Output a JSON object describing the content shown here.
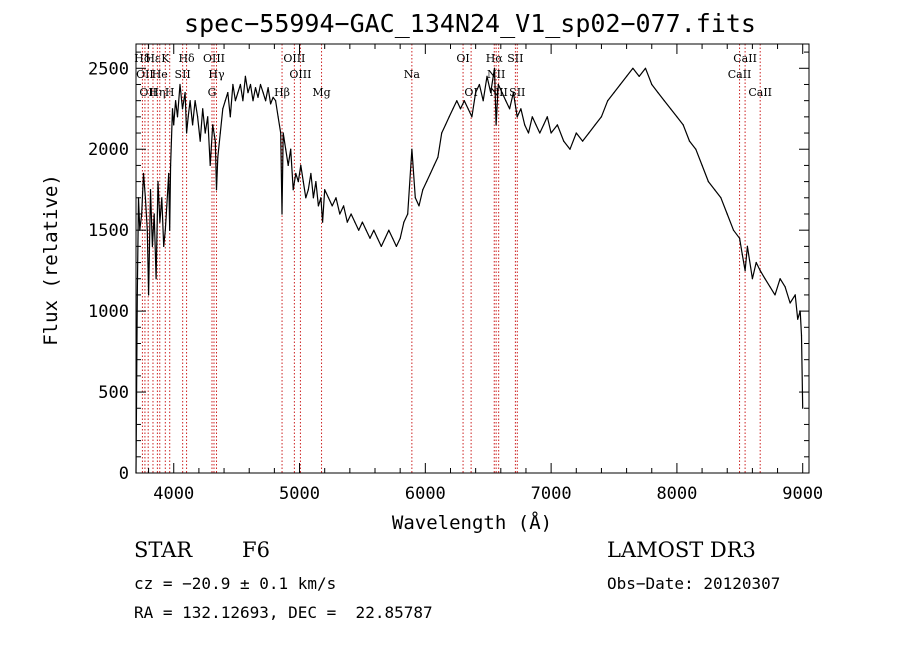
{
  "chart_data": {
    "type": "line",
    "title": "spec−55994−GAC_134N24_V1_sp02−077.fits",
    "xlabel": "Wavelength (Å)",
    "ylabel": "Flux (relative)",
    "xlim": [
      3700,
      9050
    ],
    "ylim": [
      0,
      2650
    ],
    "x_ticks": [
      4000,
      5000,
      6000,
      7000,
      8000,
      9000
    ],
    "y_ticks": [
      0,
      500,
      1000,
      1500,
      2000,
      2500
    ],
    "grid": false,
    "series": [
      {
        "x": [
          3700,
          3710,
          3720,
          3730,
          3745,
          3760,
          3775,
          3790,
          3800,
          3815,
          3830,
          3845,
          3860,
          3875,
          3890,
          3905,
          3920,
          3933,
          3945,
          3960,
          3968,
          3975,
          3990,
          4000,
          4015,
          4030,
          4050,
          4070,
          4090,
          4102,
          4115,
          4130,
          4150,
          4170,
          4190,
          4210,
          4230,
          4250,
          4270,
          4290,
          4310,
          4330,
          4340,
          4350,
          4370,
          4390,
          4410,
          4430,
          4450,
          4470,
          4490,
          4510,
          4530,
          4550,
          4570,
          4590,
          4610,
          4630,
          4650,
          4670,
          4690,
          4710,
          4730,
          4750,
          4770,
          4790,
          4810,
          4830,
          4850,
          4861,
          4870,
          4890,
          4910,
          4930,
          4950,
          4970,
          4990,
          5010,
          5030,
          5050,
          5070,
          5090,
          5110,
          5130,
          5150,
          5170,
          5183,
          5200,
          5230,
          5260,
          5290,
          5320,
          5350,
          5380,
          5410,
          5440,
          5470,
          5500,
          5530,
          5560,
          5590,
          5620,
          5650,
          5680,
          5710,
          5740,
          5770,
          5800,
          5830,
          5860,
          5893,
          5920,
          5950,
          5980,
          6010,
          6040,
          6070,
          6100,
          6130,
          6160,
          6190,
          6220,
          6250,
          6280,
          6310,
          6340,
          6370,
          6400,
          6430,
          6460,
          6490,
          6520,
          6550,
          6563,
          6580,
          6610,
          6640,
          6670,
          6700,
          6730,
          6760,
          6790,
          6820,
          6850,
          6880,
          6910,
          6940,
          6970,
          7000,
          7050,
          7100,
          7150,
          7200,
          7250,
          7300,
          7350,
          7400,
          7450,
          7500,
          7550,
          7600,
          7650,
          7700,
          7750,
          7800,
          7850,
          7900,
          7950,
          8000,
          8050,
          8100,
          8150,
          8200,
          8250,
          8300,
          8350,
          8400,
          8450,
          8498,
          8520,
          8542,
          8560,
          8600,
          8630,
          8662,
          8700,
          8740,
          8780,
          8820,
          8860,
          8900,
          8940,
          8960,
          8980,
          8990,
          9000
        ],
        "y": [
          0,
          1100,
          1700,
          1500,
          1600,
          1850,
          1700,
          1500,
          1100,
          1750,
          1400,
          1600,
          1200,
          1800,
          1550,
          1700,
          1400,
          1500,
          1650,
          1850,
          1500,
          1900,
          2250,
          2150,
          2300,
          2200,
          2400,
          2250,
          2350,
          2100,
          2200,
          2300,
          2150,
          2300,
          2200,
          2050,
          2250,
          2100,
          2200,
          1900,
          2150,
          2050,
          1750,
          1950,
          2100,
          2250,
          2300,
          2350,
          2200,
          2400,
          2300,
          2350,
          2400,
          2300,
          2450,
          2350,
          2400,
          2300,
          2380,
          2320,
          2400,
          2350,
          2300,
          2380,
          2280,
          2320,
          2300,
          2200,
          2100,
          1600,
          2100,
          2000,
          1900,
          2000,
          1750,
          1850,
          1800,
          1900,
          1800,
          1700,
          1750,
          1850,
          1700,
          1800,
          1650,
          1700,
          1550,
          1750,
          1700,
          1650,
          1700,
          1600,
          1650,
          1550,
          1600,
          1550,
          1500,
          1550,
          1500,
          1450,
          1500,
          1450,
          1400,
          1450,
          1500,
          1450,
          1400,
          1450,
          1550,
          1600,
          2000,
          1700,
          1650,
          1750,
          1800,
          1850,
          1900,
          1950,
          2100,
          2150,
          2200,
          2250,
          2300,
          2250,
          2300,
          2250,
          2200,
          2350,
          2400,
          2300,
          2450,
          2350,
          2500,
          2150,
          2400,
          2350,
          2300,
          2250,
          2350,
          2200,
          2250,
          2150,
          2100,
          2200,
          2150,
          2100,
          2150,
          2200,
          2100,
          2150,
          2050,
          2000,
          2100,
          2050,
          2100,
          2150,
          2200,
          2300,
          2350,
          2400,
          2450,
          2500,
          2450,
          2500,
          2400,
          2350,
          2300,
          2250,
          2200,
          2150,
          2050,
          2000,
          1900,
          1800,
          1750,
          1700,
          1600,
          1500,
          1450,
          1350,
          1250,
          1400,
          1200,
          1300,
          1250,
          1200,
          1150,
          1100,
          1200,
          1150,
          1050,
          1100,
          950,
          1000,
          850,
          400
        ]
      }
    ],
    "lines": [
      {
        "x": 3751,
        "label": "Hδ",
        "row": 1
      },
      {
        "x": 3771,
        "label": "OII",
        "row": 2
      },
      {
        "x": 3797,
        "label": "OII",
        "row": 3
      },
      {
        "x": 3835,
        "label": "Hε",
        "row": 1
      },
      {
        "x": 3889,
        "label": "He",
        "row": 2
      },
      {
        "x": 3933,
        "label": "K",
        "row": 1
      },
      {
        "x": 3870,
        "label": "Hη",
        "row": 3
      },
      {
        "x": 3968,
        "label": "H",
        "row": 3
      },
      {
        "x": 4071,
        "label": "SII",
        "row": 2
      },
      {
        "x": 4102,
        "label": "Hδ",
        "row": 1
      },
      {
        "x": 4320,
        "label": "OIII",
        "row": 1
      },
      {
        "x": 4340,
        "label": "Hγ",
        "row": 2
      },
      {
        "x": 4304,
        "label": "G",
        "row": 3
      },
      {
        "x": 4861,
        "label": "Hβ",
        "row": 3
      },
      {
        "x": 4959,
        "label": "OIII",
        "row": 1
      },
      {
        "x": 5007,
        "label": "OIII",
        "row": 2
      },
      {
        "x": 5175,
        "label": "Mg",
        "row": 3
      },
      {
        "x": 5893,
        "label": "Na",
        "row": 2
      },
      {
        "x": 6300,
        "label": "OI",
        "row": 1
      },
      {
        "x": 6364,
        "label": "OI",
        "row": 3
      },
      {
        "x": 6548,
        "label": "Hα",
        "row": 1
      },
      {
        "x": 6563,
        "label": "NII",
        "row": 2
      },
      {
        "x": 6583,
        "label": "NII",
        "row": 3
      },
      {
        "x": 6716,
        "label": "SII",
        "row": 1
      },
      {
        "x": 6731,
        "label": "SII",
        "row": 3
      },
      {
        "x": 8498,
        "label": "CaII",
        "row": 2
      },
      {
        "x": 8542,
        "label": "CaII",
        "row": 1
      },
      {
        "x": 8662,
        "label": "CaII",
        "row": 3
      }
    ]
  },
  "info": {
    "class_label": "STAR",
    "subclass_label": "F6",
    "survey": "LAMOST DR3",
    "redshift": "cz = −20.9 ± 0.1 km/s",
    "obs_date": "Obs−Date: 20120307",
    "coords": "RA = 132.12693, DEC =  22.85787"
  },
  "colors": {
    "spectrum": "#000000",
    "line_marker": "#cc2222"
  }
}
